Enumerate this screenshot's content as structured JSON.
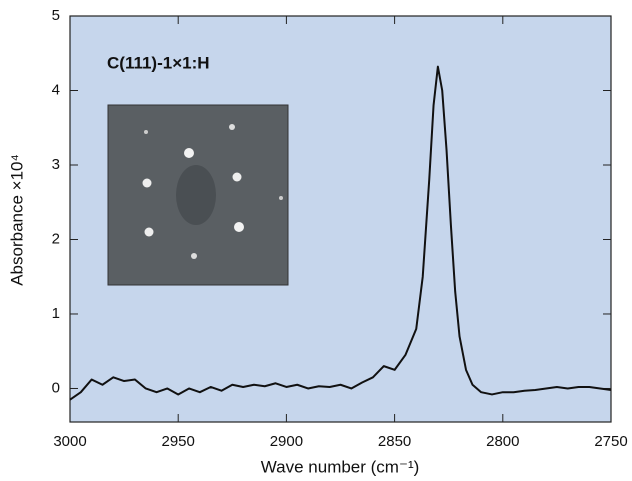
{
  "chart_data": {
    "type": "line",
    "annotation": "C(111)-1×1:H",
    "x_label": "Wave number (cm⁻¹)",
    "y_label": "Absorbance ×10⁴",
    "xlim": [
      3000,
      2750
    ],
    "ylim": [
      -0.45,
      5
    ],
    "xticks": [
      3000,
      2950,
      2900,
      2850,
      2800,
      2750
    ],
    "yticks": [
      0,
      1,
      2,
      3,
      4,
      5
    ],
    "grid": false,
    "x": [
      3000,
      2995,
      2990,
      2985,
      2980,
      2975,
      2970,
      2965,
      2960,
      2955,
      2950,
      2945,
      2940,
      2935,
      2930,
      2925,
      2920,
      2915,
      2910,
      2905,
      2900,
      2895,
      2890,
      2885,
      2880,
      2875,
      2870,
      2865,
      2860,
      2855,
      2850,
      2845,
      2840,
      2837,
      2834,
      2832,
      2830,
      2828,
      2826,
      2824,
      2822,
      2820,
      2817,
      2814,
      2810,
      2805,
      2800,
      2795,
      2790,
      2785,
      2780,
      2775,
      2770,
      2765,
      2760,
      2755,
      2750
    ],
    "series": [
      {
        "color": "#111111",
        "values": [
          -0.15,
          -0.05,
          0.12,
          0.05,
          0.15,
          0.1,
          0.12,
          0.0,
          -0.05,
          0.0,
          -0.08,
          0.0,
          -0.05,
          0.02,
          -0.03,
          0.05,
          0.02,
          0.05,
          0.03,
          0.07,
          0.02,
          0.05,
          0.0,
          0.03,
          0.02,
          0.05,
          0.0,
          0.08,
          0.15,
          0.3,
          0.25,
          0.45,
          0.8,
          1.5,
          2.8,
          3.8,
          4.32,
          4.0,
          3.2,
          2.2,
          1.3,
          0.7,
          0.25,
          0.05,
          -0.05,
          -0.08,
          -0.05,
          -0.05,
          -0.03,
          -0.02,
          0.0,
          0.02,
          0.0,
          0.02,
          0.02,
          0.0,
          -0.02
        ]
      }
    ]
  }
}
